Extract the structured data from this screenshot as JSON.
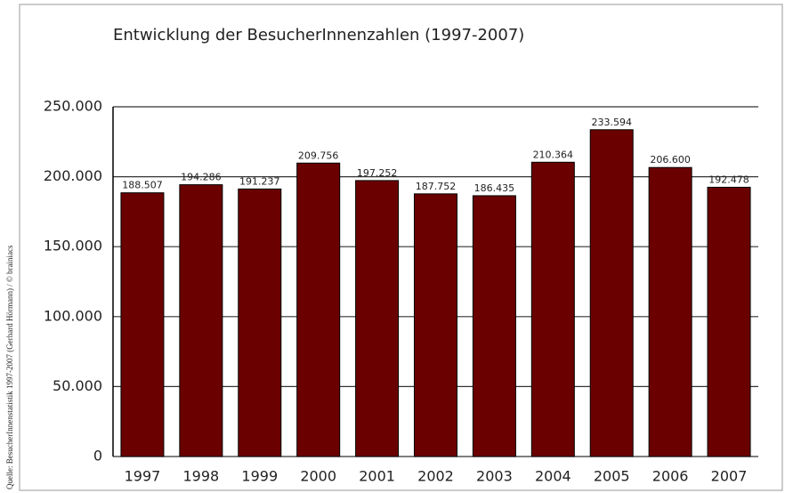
{
  "chart_data": {
    "type": "bar",
    "title": "Entwicklung der BesucherInnenzahlen (1997-2007)",
    "source": "Quelle: BesucherInnenstatistik 1997-2007 (Gerhard Hörmann) / © brainiacs",
    "categories": [
      "1997",
      "1998",
      "1999",
      "2000",
      "2001",
      "2002",
      "2003",
      "2004",
      "2005",
      "2006",
      "2007"
    ],
    "values": [
      188507,
      194286,
      191237,
      209756,
      197252,
      187752,
      186435,
      210364,
      233594,
      206600,
      192478
    ],
    "value_labels": [
      "188.507",
      "194.286",
      "191.237",
      "209.756",
      "197.252",
      "187.752",
      "186.435",
      "210.364",
      "233.594",
      "206.600",
      "192.478"
    ],
    "color": "#6b0000",
    "ylim": [
      0,
      250000
    ],
    "yticks": [
      0,
      {
        "value": 50000,
        "label": "50.000"
      },
      {
        "value": 100000,
        "label": "100.000"
      },
      {
        "value": 150000,
        "label": "150.000"
      },
      {
        "value": 200000,
        "label": "200.000"
      },
      {
        "value": 250000,
        "label": "250.000"
      }
    ],
    "grid": true
  }
}
